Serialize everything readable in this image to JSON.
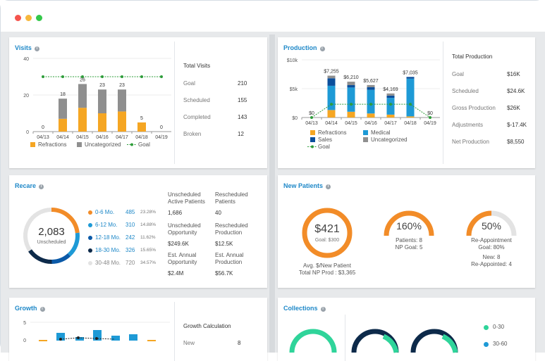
{
  "window": {
    "dots": [
      "#f5544d",
      "#f7b73c",
      "#34c84a"
    ]
  },
  "visits": {
    "title": "Visits",
    "chart_data": {
      "type": "bar",
      "categories": [
        "04/13",
        "04/14",
        "04/15",
        "04/16",
        "04/17",
        "04/18",
        "04/19"
      ],
      "series": [
        {
          "name": "Refractions",
          "color": "#f5a623",
          "values": [
            0,
            7,
            13,
            10,
            11,
            5,
            0
          ]
        },
        {
          "name": "Uncategorized",
          "color": "#8f8f8f",
          "values": [
            0,
            11,
            13,
            13,
            12,
            0,
            0
          ]
        }
      ],
      "totals": [
        "0",
        "18",
        "26",
        "23",
        "23",
        "5",
        "0"
      ],
      "goal": {
        "name": "Goal",
        "value": 30,
        "color": "#2e9d3a"
      },
      "yticks": [
        "0",
        "20",
        "40"
      ],
      "ylim": [
        0,
        40
      ]
    },
    "legend": [
      "Refractions",
      "Uncategorized",
      "Goal"
    ],
    "stats_title": "Total Visits",
    "stats": [
      {
        "label": "Goal",
        "value": "210"
      },
      {
        "label": "Scheduled",
        "value": "155"
      },
      {
        "label": "Completed",
        "value": "143"
      },
      {
        "label": "Broken",
        "value": "12"
      }
    ]
  },
  "production": {
    "title": "Production",
    "chart_data": {
      "type": "bar",
      "categories": [
        "04/13",
        "04/14",
        "04/15",
        "04/16",
        "04/17",
        "04/18",
        "04/19"
      ],
      "series": [
        {
          "name": "Refractions",
          "color": "#f5a623",
          "values": [
            0,
            1300,
            1000,
            700,
            500,
            200,
            0
          ]
        },
        {
          "name": "Medical",
          "color": "#1e9ad6",
          "values": [
            0,
            4200,
            4200,
            4100,
            2900,
            6535,
            0
          ]
        },
        {
          "name": "Sales",
          "color": "#0b4f9c",
          "values": [
            0,
            1300,
            410,
            450,
            400,
            300,
            0
          ]
        },
        {
          "name": "Uncategorized",
          "color": "#8f8f8f",
          "values": [
            0,
            455,
            600,
            377,
            369,
            0,
            0
          ]
        }
      ],
      "totals": [
        "$0",
        "$7,255",
        "$6,210",
        "$5,627",
        "$4,169",
        "$7,035",
        "$0"
      ],
      "goal": {
        "name": "Goal",
        "value": 2300,
        "color": "#2e9d3a"
      },
      "yticks": [
        "$0",
        "$5k",
        "$10k"
      ],
      "ylim": [
        0,
        10000
      ]
    },
    "legend": [
      "Refractions",
      "Medical",
      "Sales",
      "Uncategorized",
      "Goal"
    ],
    "stats_title": "Total Production",
    "stats": [
      {
        "label": "Goal",
        "value": "$16K"
      },
      {
        "label": "Scheduled",
        "value": "$24.6K"
      },
      {
        "label": "Gross Production",
        "value": "$26K"
      },
      {
        "label": "Adjustments",
        "value": "$-17.4K"
      },
      {
        "label": "Net Production",
        "value": "$8,550"
      }
    ]
  },
  "recare": {
    "title": "Recare",
    "donut": {
      "value": "2,083",
      "label": "Unscheduled"
    },
    "segments": [
      {
        "label": "0-6 Mo.",
        "count": "485",
        "pct": "23.28%",
        "color": "#f28c28",
        "fraction": 0.2328
      },
      {
        "label": "6-12 Mo.",
        "count": "310",
        "pct": "14.88%",
        "color": "#1e9ad6",
        "fraction": 0.1488
      },
      {
        "label": "12-18 Mo.",
        "count": "242",
        "pct": "11.62%",
        "color": "#0b5aa8",
        "fraction": 0.1162
      },
      {
        "label": "18-30 Mo.",
        "count": "326",
        "pct": "15.65%",
        "color": "#0d2a4a",
        "fraction": 0.1565
      },
      {
        "label": "30-48 Mo.",
        "count": "720",
        "pct": "34.57%",
        "color": "#e3e3e3",
        "fraction": 0.3457
      }
    ],
    "metrics": [
      {
        "label": "Unscheduled Active Patients",
        "value": "1,686"
      },
      {
        "label": "Rescheduled Patients",
        "value": "40"
      },
      {
        "label": "Unscheduled Opportunity",
        "value": "$249.6K"
      },
      {
        "label": "Rescheduled Production",
        "value": "$12.5K"
      },
      {
        "label": "Est. Annual Opportunity",
        "value": "$2.4M"
      },
      {
        "label": "Est. Annual Production",
        "value": "$56.7K"
      }
    ]
  },
  "new_patients": {
    "title": "New Patients",
    "gauges": [
      {
        "value": "$421",
        "sub": "Goal: $300",
        "caption": [
          "Avg. $/New Patient",
          "Total NP Prod : $3,365"
        ],
        "fraction": 1.0
      },
      {
        "value": "160%",
        "sub": "",
        "caption": [
          "Patients: 8",
          "NP Goal: 5"
        ],
        "fraction": 1.0
      },
      {
        "value": "50%",
        "sub": "",
        "caption": [
          "Re-Appointment",
          "Goal: 80%",
          "New: 8",
          "Re-Appointed: 4"
        ],
        "fraction": 0.5
      }
    ]
  },
  "growth": {
    "title": "Growth",
    "yticks": [
      "0",
      "5"
    ],
    "stats_title": "Growth Calculation",
    "partial_row": {
      "label": "New",
      "value": "8"
    }
  },
  "collections": {
    "title": "Collections",
    "legend": [
      "0-30",
      "30-60"
    ]
  }
}
